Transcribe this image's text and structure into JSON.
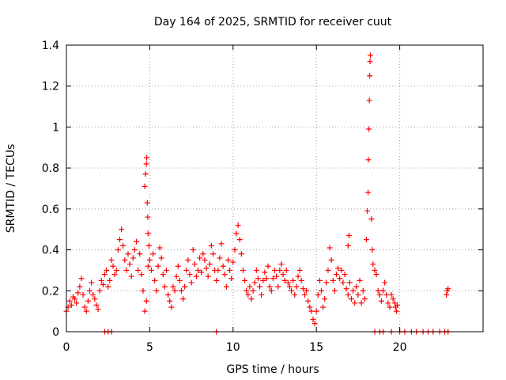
{
  "chart_data": {
    "type": "scatter",
    "title": "Day 164 of 2025, SRMTID for receiver cuut",
    "xlabel": "GPS time / hours",
    "ylabel": "SRMTID / TECUs",
    "xlim": [
      0,
      25
    ],
    "ylim": [
      0,
      1.4
    ],
    "x_ticks": [
      0,
      5,
      10,
      15,
      20
    ],
    "x_tick_labels": [
      "0",
      "5",
      "10",
      "15",
      "20"
    ],
    "y_ticks": [
      0,
      0.2,
      0.4,
      0.6,
      0.8,
      1.0,
      1.2,
      1.4
    ],
    "y_tick_labels": [
      "0",
      "0.2",
      "0.4",
      "0.6",
      "0.8",
      "1",
      "1.2",
      "1.4"
    ],
    "grid": true,
    "marker": "plus",
    "color": "#ff0000",
    "series": [
      {
        "name": "SRMTID",
        "points": [
          [
            0.0,
            0.1
          ],
          [
            0.1,
            0.12
          ],
          [
            0.2,
            0.15
          ],
          [
            0.3,
            0.13
          ],
          [
            0.4,
            0.17
          ],
          [
            0.5,
            0.16
          ],
          [
            0.6,
            0.14
          ],
          [
            0.7,
            0.19
          ],
          [
            0.8,
            0.22
          ],
          [
            0.9,
            0.26
          ],
          [
            1.0,
            0.18
          ],
          [
            1.1,
            0.12
          ],
          [
            1.2,
            0.1
          ],
          [
            1.3,
            0.15
          ],
          [
            1.4,
            0.2
          ],
          [
            1.5,
            0.24
          ],
          [
            1.6,
            0.18
          ],
          [
            1.7,
            0.16
          ],
          [
            1.8,
            0.13
          ],
          [
            1.9,
            0.11
          ],
          [
            2.0,
            0.2
          ],
          [
            2.1,
            0.25
          ],
          [
            2.2,
            0.23
          ],
          [
            2.3,
            0.28
          ],
          [
            2.4,
            0.3
          ],
          [
            2.5,
            0.22
          ],
          [
            2.6,
            0.25
          ],
          [
            2.7,
            0.35
          ],
          [
            2.8,
            0.32
          ],
          [
            2.9,
            0.28
          ],
          [
            3.0,
            0.3
          ],
          [
            3.1,
            0.4
          ],
          [
            3.2,
            0.45
          ],
          [
            3.3,
            0.5
          ],
          [
            3.4,
            0.42
          ],
          [
            3.5,
            0.35
          ],
          [
            3.6,
            0.3
          ],
          [
            3.7,
            0.38
          ],
          [
            3.8,
            0.33
          ],
          [
            3.9,
            0.27
          ],
          [
            4.0,
            0.36
          ],
          [
            4.1,
            0.4
          ],
          [
            4.2,
            0.44
          ],
          [
            4.3,
            0.3
          ],
          [
            4.4,
            0.38
          ],
          [
            4.5,
            0.28
          ],
          [
            4.6,
            0.2
          ],
          [
            4.7,
            0.1
          ],
          [
            4.8,
            0.15
          ],
          [
            4.9,
            0.32
          ],
          [
            4.7,
            0.71
          ],
          [
            4.75,
            0.77
          ],
          [
            4.8,
            0.82
          ],
          [
            4.82,
            0.85
          ],
          [
            4.85,
            0.63
          ],
          [
            4.88,
            0.56
          ],
          [
            4.9,
            0.48
          ],
          [
            4.95,
            0.42
          ],
          [
            5.0,
            0.35
          ],
          [
            5.1,
            0.3
          ],
          [
            5.2,
            0.38
          ],
          [
            5.3,
            0.25
          ],
          [
            5.4,
            0.2
          ],
          [
            5.5,
            0.32
          ],
          [
            5.6,
            0.41
          ],
          [
            5.7,
            0.36
          ],
          [
            5.8,
            0.28
          ],
          [
            5.9,
            0.22
          ],
          [
            6.0,
            0.3
          ],
          [
            6.1,
            0.18
          ],
          [
            6.2,
            0.15
          ],
          [
            6.3,
            0.12
          ],
          [
            6.4,
            0.22
          ],
          [
            6.5,
            0.2
          ],
          [
            6.6,
            0.27
          ],
          [
            6.7,
            0.32
          ],
          [
            6.8,
            0.25
          ],
          [
            6.9,
            0.2
          ],
          [
            7.0,
            0.16
          ],
          [
            7.1,
            0.22
          ],
          [
            7.2,
            0.3
          ],
          [
            7.3,
            0.35
          ],
          [
            7.4,
            0.28
          ],
          [
            7.5,
            0.24
          ],
          [
            7.6,
            0.4
          ],
          [
            7.7,
            0.33
          ],
          [
            7.8,
            0.27
          ],
          [
            7.9,
            0.3
          ],
          [
            8.0,
            0.36
          ],
          [
            8.1,
            0.29
          ],
          [
            8.2,
            0.38
          ],
          [
            8.3,
            0.35
          ],
          [
            8.4,
            0.31
          ],
          [
            8.5,
            0.27
          ],
          [
            8.6,
            0.33
          ],
          [
            8.7,
            0.42
          ],
          [
            8.8,
            0.38
          ],
          [
            8.9,
            0.3
          ],
          [
            9.0,
            0.25
          ],
          [
            9.1,
            0.3
          ],
          [
            9.2,
            0.36
          ],
          [
            9.3,
            0.43
          ],
          [
            9.4,
            0.32
          ],
          [
            9.5,
            0.28
          ],
          [
            9.6,
            0.22
          ],
          [
            9.7,
            0.35
          ],
          [
            9.8,
            0.3
          ],
          [
            9.9,
            0.26
          ],
          [
            10.0,
            0.34
          ],
          [
            10.1,
            0.4
          ],
          [
            10.2,
            0.48
          ],
          [
            10.3,
            0.52
          ],
          [
            10.4,
            0.45
          ],
          [
            10.5,
            0.38
          ],
          [
            10.6,
            0.3
          ],
          [
            10.7,
            0.25
          ],
          [
            10.8,
            0.2
          ],
          [
            10.9,
            0.18
          ],
          [
            11.0,
            0.22
          ],
          [
            11.1,
            0.16
          ],
          [
            11.2,
            0.2
          ],
          [
            11.3,
            0.24
          ],
          [
            11.4,
            0.3
          ],
          [
            11.5,
            0.26
          ],
          [
            11.6,
            0.22
          ],
          [
            11.7,
            0.18
          ],
          [
            11.8,
            0.25
          ],
          [
            11.9,
            0.29
          ],
          [
            12.0,
            0.26
          ],
          [
            12.1,
            0.32
          ],
          [
            12.2,
            0.22
          ],
          [
            12.3,
            0.2
          ],
          [
            12.4,
            0.26
          ],
          [
            12.5,
            0.3
          ],
          [
            12.6,
            0.27
          ],
          [
            12.7,
            0.22
          ],
          [
            12.8,
            0.3
          ],
          [
            12.9,
            0.33
          ],
          [
            13.0,
            0.28
          ],
          [
            13.1,
            0.25
          ],
          [
            13.2,
            0.3
          ],
          [
            13.3,
            0.24
          ],
          [
            13.4,
            0.22
          ],
          [
            13.5,
            0.2
          ],
          [
            13.6,
            0.25
          ],
          [
            13.7,
            0.18
          ],
          [
            13.8,
            0.22
          ],
          [
            13.9,
            0.27
          ],
          [
            14.0,
            0.3
          ],
          [
            14.1,
            0.25
          ],
          [
            14.2,
            0.21
          ],
          [
            14.3,
            0.18
          ],
          [
            14.4,
            0.2
          ],
          [
            14.5,
            0.15
          ],
          [
            14.6,
            0.12
          ],
          [
            14.7,
            0.1
          ],
          [
            14.8,
            0.06
          ],
          [
            14.9,
            0.04
          ],
          [
            15.0,
            0.1
          ],
          [
            15.1,
            0.18
          ],
          [
            15.2,
            0.25
          ],
          [
            15.3,
            0.2
          ],
          [
            15.4,
            0.12
          ],
          [
            15.5,
            0.16
          ],
          [
            15.6,
            0.24
          ],
          [
            15.7,
            0.3
          ],
          [
            15.8,
            0.41
          ],
          [
            15.9,
            0.35
          ],
          [
            16.0,
            0.25
          ],
          [
            16.1,
            0.2
          ],
          [
            16.2,
            0.28
          ],
          [
            16.3,
            0.31
          ],
          [
            16.4,
            0.26
          ],
          [
            16.5,
            0.3
          ],
          [
            16.6,
            0.24
          ],
          [
            16.7,
            0.28
          ],
          [
            16.8,
            0.21
          ],
          [
            16.9,
            0.18
          ],
          [
            16.9,
            0.42
          ],
          [
            16.95,
            0.47
          ],
          [
            17.0,
            0.24
          ],
          [
            17.1,
            0.16
          ],
          [
            17.2,
            0.2
          ],
          [
            17.3,
            0.14
          ],
          [
            17.4,
            0.22
          ],
          [
            17.5,
            0.18
          ],
          [
            17.6,
            0.25
          ],
          [
            17.7,
            0.14
          ],
          [
            17.8,
            0.2
          ],
          [
            17.9,
            0.16
          ],
          [
            18.0,
            0.45
          ],
          [
            18.05,
            0.59
          ],
          [
            18.1,
            0.68
          ],
          [
            18.12,
            0.84
          ],
          [
            18.15,
            0.99
          ],
          [
            18.18,
            1.13
          ],
          [
            18.2,
            1.25
          ],
          [
            18.22,
            1.32
          ],
          [
            18.24,
            1.35
          ],
          [
            18.3,
            0.55
          ],
          [
            18.35,
            0.4
          ],
          [
            18.4,
            0.33
          ],
          [
            18.5,
            0.3
          ],
          [
            18.6,
            0.28
          ],
          [
            18.7,
            0.2
          ],
          [
            18.8,
            0.18
          ],
          [
            18.9,
            0.15
          ],
          [
            19.0,
            0.2
          ],
          [
            19.1,
            0.24
          ],
          [
            19.2,
            0.18
          ],
          [
            19.3,
            0.14
          ],
          [
            19.4,
            0.12
          ],
          [
            19.5,
            0.18
          ],
          [
            19.6,
            0.16
          ],
          [
            19.7,
            0.14
          ],
          [
            19.75,
            0.12
          ],
          [
            19.8,
            0.1
          ],
          [
            19.85,
            0.13
          ],
          [
            22.8,
            0.18
          ],
          [
            22.85,
            0.2
          ],
          [
            22.9,
            0.21
          ],
          [
            2.3,
            0.0
          ],
          [
            2.5,
            0.0
          ],
          [
            2.7,
            0.0
          ],
          [
            9.0,
            0.0
          ],
          [
            18.5,
            0.0
          ],
          [
            18.8,
            0.0
          ],
          [
            19.0,
            0.0
          ],
          [
            19.5,
            0.0
          ],
          [
            20.0,
            0.0
          ],
          [
            20.3,
            0.0
          ],
          [
            20.7,
            0.0
          ],
          [
            21.0,
            0.0
          ],
          [
            21.4,
            0.0
          ],
          [
            21.7,
            0.0
          ],
          [
            22.0,
            0.0
          ],
          [
            22.4,
            0.0
          ],
          [
            22.7,
            0.0
          ],
          [
            22.9,
            0.0
          ]
        ]
      }
    ]
  }
}
